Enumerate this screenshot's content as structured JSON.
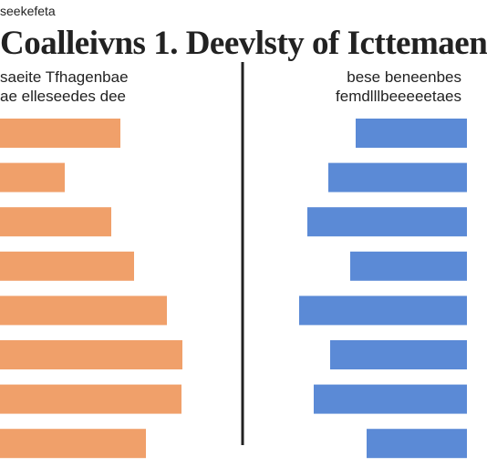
{
  "header": {
    "kicker": "seekefeta",
    "title": "Coalleivns 1. Deevlsty of Icttemaen"
  },
  "left_panel": {
    "subtitle_line1": "saeite Tfhagenbae",
    "subtitle_line2": "ae elleseedes dee"
  },
  "right_panel": {
    "subtitle_line1": "bese beneenbes",
    "subtitle_line2": "femdlllbeeeeetaes"
  },
  "chart_data": {
    "type": "bar",
    "orientation": "horizontal",
    "layout": "diverging-two-panel",
    "xlim": [
      0,
      200
    ],
    "divider": true,
    "series": [
      {
        "side": "left",
        "color": "#f0a06a",
        "values": [
          132,
          71,
          122,
          147,
          183,
          200,
          199,
          160
        ]
      },
      {
        "side": "right",
        "color": "#5b8ad6",
        "values": [
          122,
          152,
          175,
          128,
          184,
          150,
          168,
          110
        ]
      }
    ]
  }
}
